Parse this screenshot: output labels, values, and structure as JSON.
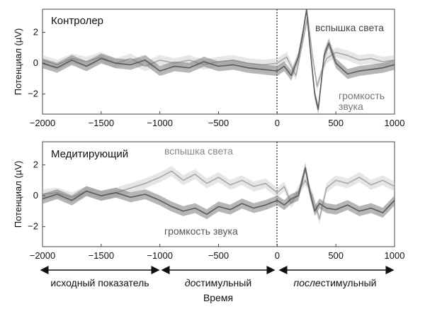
{
  "chart_data": [
    {
      "type": "line",
      "title": "Контролер",
      "xlabel": "",
      "ylabel": "Потенциал (µV)",
      "xlim": [
        -2000,
        1000
      ],
      "ylim": [
        -3.3,
        3.5
      ],
      "xticks": [
        -2000,
        -1500,
        -1000,
        -500,
        0,
        500,
        1000
      ],
      "xtick_labels": [
        "−2000",
        "−1500",
        "−1000",
        "−500",
        "0",
        "500",
        "1000"
      ],
      "yticks": [
        2,
        0,
        -2
      ],
      "ytick_labels": [
        "2",
        "0",
        "−2"
      ],
      "stimulus_onset_ms": 0,
      "series": [
        {
          "name": "вспышка света",
          "color": "#c8c8c8",
          "x": [
            -2000,
            -1875,
            -1750,
            -1625,
            -1500,
            -1375,
            -1250,
            -1125,
            -1000,
            -875,
            -750,
            -625,
            -500,
            -375,
            -250,
            -125,
            0,
            80,
            160,
            220,
            260,
            300,
            340,
            380,
            420,
            500,
            600,
            700,
            800,
            900,
            1000
          ],
          "values": [
            0.2,
            -0.1,
            0.3,
            0.1,
            0.4,
            0.0,
            0.3,
            -0.2,
            0.2,
            0.0,
            0.2,
            -0.1,
            0.1,
            0.2,
            0.0,
            -0.1,
            0.0,
            0.4,
            -0.8,
            1.5,
            3.0,
            0.5,
            -1.5,
            -0.5,
            0.3,
            0.7,
            0.5,
            0.2,
            0.3,
            0.1,
            0.2
          ]
        },
        {
          "name": "громкость звука",
          "color": "#7a7a7a",
          "x": [
            -2000,
            -1875,
            -1750,
            -1625,
            -1500,
            -1375,
            -1250,
            -1125,
            -1000,
            -875,
            -750,
            -625,
            -500,
            -375,
            -250,
            -125,
            0,
            60,
            120,
            180,
            220,
            250,
            280,
            320,
            350,
            400,
            440,
            500,
            600,
            700,
            800,
            900,
            1000
          ],
          "values": [
            0.0,
            -0.3,
            0.2,
            -0.2,
            0.3,
            0.0,
            -0.1,
            0.2,
            -0.5,
            -0.2,
            -0.3,
            0.1,
            -0.2,
            -0.1,
            -0.3,
            -0.4,
            -0.5,
            -0.2,
            -0.8,
            0.4,
            2.0,
            3.5,
            1.0,
            -2.0,
            -3.0,
            0.5,
            1.3,
            0.0,
            -0.7,
            -0.5,
            -0.4,
            -0.3,
            -0.1
          ]
        }
      ],
      "annotations": [
        "вспышка света",
        "громкость",
        "звука"
      ]
    },
    {
      "type": "line",
      "title": "Медитирующий",
      "xlabel": "Время",
      "ylabel": "Потенциал (µV)",
      "xlim": [
        -2000,
        1000
      ],
      "ylim": [
        -3.3,
        3.5
      ],
      "xticks": [
        -2000,
        -1500,
        -1000,
        -500,
        0,
        500,
        1000
      ],
      "xtick_labels": [
        "−2000",
        "−1500",
        "−1000",
        "−500",
        "0",
        "500",
        "1000"
      ],
      "yticks": [
        2,
        0,
        -2
      ],
      "ytick_labels": [
        "2",
        "0",
        "−2"
      ],
      "stimulus_onset_ms": 0,
      "series": [
        {
          "name": "вспышка света",
          "color": "#c8c8c8",
          "x": [
            -2000,
            -1875,
            -1750,
            -1625,
            -1500,
            -1375,
            -1250,
            -1125,
            -1000,
            -900,
            -800,
            -700,
            -600,
            -500,
            -400,
            -300,
            -200,
            -100,
            0,
            60,
            120,
            180,
            240,
            300,
            360,
            420,
            500,
            600,
            700,
            800,
            900,
            1000
          ],
          "values": [
            0.1,
            0.2,
            -0.1,
            0.3,
            0.0,
            0.2,
            0.5,
            0.8,
            1.2,
            1.6,
            1.0,
            1.4,
            0.8,
            1.2,
            0.7,
            1.0,
            0.6,
            0.8,
            0.2,
            0.6,
            -0.5,
            0.3,
            1.0,
            0.0,
            -1.5,
            0.5,
            1.0,
            0.8,
            1.2,
            0.7,
            1.0,
            0.6
          ]
        },
        {
          "name": "громкость звука",
          "color": "#7a7a7a",
          "x": [
            -2000,
            -1875,
            -1750,
            -1625,
            -1500,
            -1375,
            -1250,
            -1125,
            -1000,
            -900,
            -800,
            -700,
            -600,
            -500,
            -400,
            -300,
            -200,
            -100,
            0,
            60,
            120,
            180,
            240,
            280,
            320,
            360,
            420,
            500,
            600,
            700,
            800,
            900,
            1000
          ],
          "values": [
            -0.2,
            0.1,
            -0.3,
            0.3,
            0.0,
            0.2,
            -0.1,
            0.1,
            -0.3,
            -0.7,
            -1.0,
            -0.8,
            -1.2,
            -0.7,
            -0.9,
            -0.5,
            -0.8,
            -0.6,
            -0.3,
            -0.6,
            -0.2,
            0.0,
            1.8,
            0.2,
            -1.0,
            -0.5,
            -0.8,
            -0.9,
            -0.6,
            -1.0,
            -0.8,
            -1.1,
            -0.3
          ]
        }
      ],
      "annotations": [
        "вспышка света",
        "громкость звука"
      ]
    }
  ],
  "period_labels": {
    "baseline": "исходный показатель",
    "prestim_prefix": "до",
    "prestim_suffix": "стимульный",
    "poststim_prefix": "после",
    "poststim_suffix": "стимульный"
  },
  "shared_xlabel": "Время"
}
